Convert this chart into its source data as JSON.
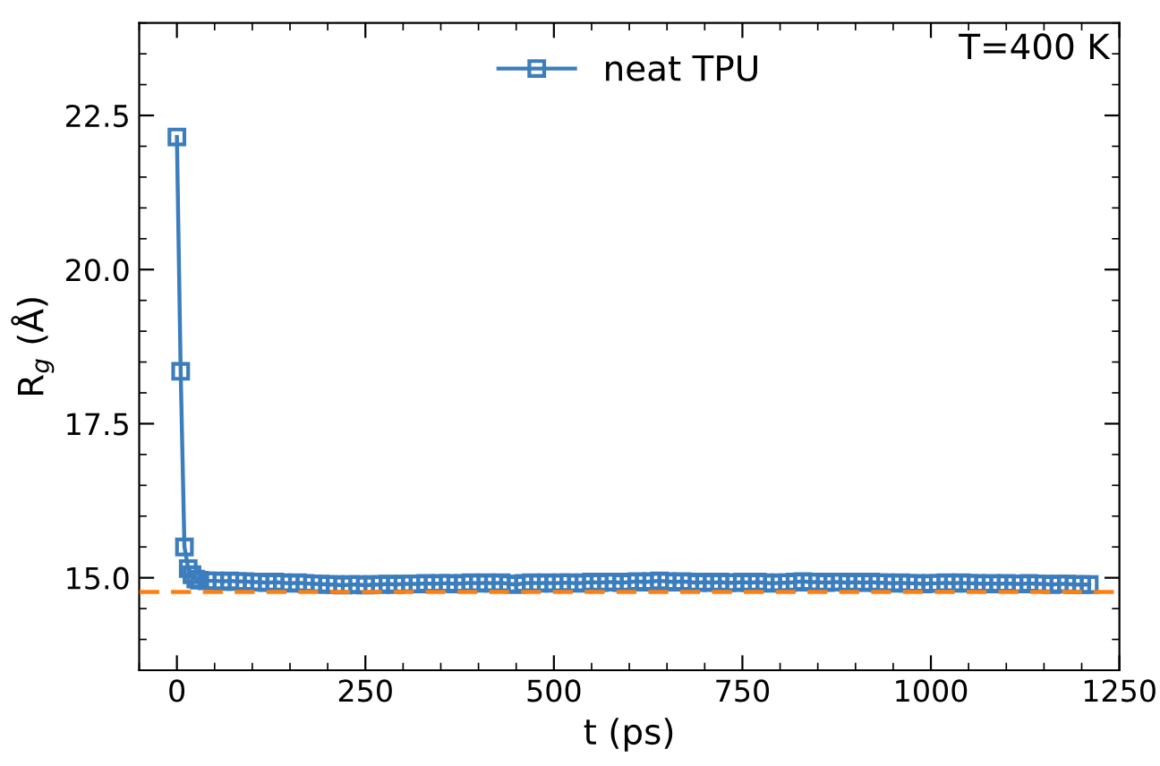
{
  "chart_data": {
    "type": "line",
    "xlabel": "t (ps)",
    "ylabel": "R$_{g}$ (Å)",
    "annotations": [
      "T=400 K"
    ],
    "series": [
      {
        "name": "neat TPU",
        "color": "#3b7dbd",
        "marker": "square",
        "x": [
          0,
          5,
          10,
          15,
          20,
          25,
          30,
          40,
          50,
          60,
          70,
          80,
          90,
          100,
          110,
          120,
          130,
          140,
          150,
          160,
          170,
          180,
          190,
          200,
          210,
          220,
          230,
          240,
          250,
          260,
          270,
          280,
          290,
          300,
          310,
          320,
          330,
          340,
          350,
          360,
          370,
          380,
          390,
          400,
          410,
          420,
          430,
          440,
          450,
          460,
          470,
          480,
          490,
          500,
          510,
          520,
          530,
          540,
          550,
          560,
          570,
          580,
          590,
          600,
          610,
          620,
          630,
          640,
          650,
          660,
          670,
          680,
          690,
          700,
          710,
          720,
          730,
          740,
          750,
          760,
          770,
          780,
          790,
          800,
          810,
          820,
          830,
          840,
          850,
          860,
          870,
          880,
          890,
          900,
          910,
          920,
          930,
          940,
          950,
          960,
          970,
          980,
          990,
          1000,
          1010,
          1020,
          1030,
          1040,
          1050,
          1060,
          1070,
          1080,
          1090,
          1100,
          1110,
          1120,
          1130,
          1140,
          1150,
          1160,
          1170,
          1180,
          1190,
          1200,
          1210
        ],
        "values": [
          22.15,
          18.35,
          15.5,
          15.15,
          15.05,
          14.98,
          14.96,
          14.95,
          14.95,
          14.94,
          14.95,
          14.94,
          14.94,
          14.93,
          14.93,
          14.92,
          14.93,
          14.92,
          14.91,
          14.92,
          14.91,
          14.9,
          14.9,
          14.89,
          14.89,
          14.88,
          14.89,
          14.89,
          14.88,
          14.89,
          14.89,
          14.9,
          14.89,
          14.9,
          14.9,
          14.9,
          14.91,
          14.9,
          14.91,
          14.91,
          14.9,
          14.91,
          14.92,
          14.91,
          14.92,
          14.91,
          14.92,
          14.9,
          14.89,
          14.91,
          14.92,
          14.91,
          14.92,
          14.91,
          14.92,
          14.92,
          14.91,
          14.92,
          14.93,
          14.92,
          14.93,
          14.93,
          14.92,
          14.93,
          14.94,
          14.93,
          14.94,
          14.95,
          14.94,
          14.93,
          14.94,
          14.93,
          14.92,
          14.93,
          14.92,
          14.93,
          14.92,
          14.92,
          14.93,
          14.92,
          14.93,
          14.92,
          14.91,
          14.92,
          14.92,
          14.93,
          14.94,
          14.93,
          14.93,
          14.92,
          14.93,
          14.93,
          14.92,
          14.93,
          14.92,
          14.93,
          14.92,
          14.92,
          14.91,
          14.92,
          14.91,
          14.91,
          14.9,
          14.91,
          14.91,
          14.92,
          14.91,
          14.92,
          14.91,
          14.91,
          14.9,
          14.91,
          14.9,
          14.91,
          14.9,
          14.9,
          14.91,
          14.9,
          14.9,
          14.89,
          14.9,
          14.9,
          14.89,
          14.89,
          14.89
        ]
      }
    ],
    "xlim": [
      -50,
      1250
    ],
    "xticks": [
      0,
      250,
      500,
      750,
      1000,
      1250
    ],
    "ylim": [
      13.5,
      24
    ],
    "yticks": [
      {
        "value": 15,
        "label": "15.0"
      },
      17.5,
      {
        "value": 20,
        "label": "20.0"
      },
      22.5
    ],
    "ref_lines": [
      {
        "axis": "y",
        "value": 14.77,
        "color": "#ff7f0e",
        "line_style": "dashed"
      }
    ],
    "legend": "top",
    "grid": false,
    "line_style": "solid"
  }
}
